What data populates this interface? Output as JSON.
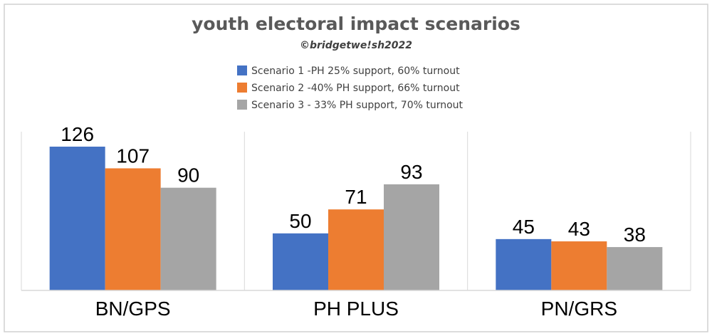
{
  "chart_data": {
    "type": "bar",
    "title": "youth electoral impact scenarios",
    "subtitle": "©bridgetwe!sh2022",
    "categories": [
      "BN/GPS",
      "PH PLUS",
      "PN/GRS"
    ],
    "series": [
      {
        "name": "Scenario 1 -PH 25% support, 60% turnout",
        "values": [
          126,
          50,
          45
        ],
        "color": "#4472C4"
      },
      {
        "name": "Scenario 2 -40% PH support, 66% turnout",
        "values": [
          107,
          71,
          43
        ],
        "color": "#ED7D31"
      },
      {
        "name": "Scenario 3 - 33% PH support, 70% turnout",
        "values": [
          90,
          93,
          38
        ],
        "color": "#A5A5A5"
      }
    ],
    "ylim": [
      0,
      126
    ],
    "grid": false,
    "legend_position": "top-center",
    "xlabel": "",
    "ylabel": ""
  }
}
